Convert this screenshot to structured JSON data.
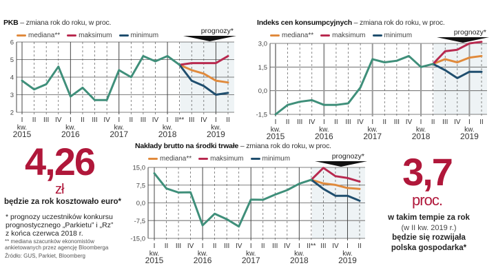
{
  "colors": {
    "actual": "#3f8f7a",
    "median": "#e08a3c",
    "max": "#b8294f",
    "min": "#1f4e6e",
    "accent_red": "#b0173a",
    "forecast_shade": "#eef3f5",
    "forecast_arrow": "#111111"
  },
  "forecast_label": "prognozy*",
  "legend": {
    "median": "mediana**",
    "max": "maksimum",
    "min": "minimum"
  },
  "quarter_labels": [
    "I",
    "II",
    "III",
    "IV",
    "I",
    "II",
    "III",
    "IV",
    "I",
    "II",
    "III",
    "IV",
    "I",
    "II",
    "III",
    "IV",
    "I",
    "II"
  ],
  "year_labels": [
    {
      "kw": "kw.",
      "year": "2015"
    },
    {
      "kw": "kw.",
      "year": "2016"
    },
    {
      "kw": "kw.",
      "year": "2017"
    },
    {
      "kw": "kw.",
      "year": "2018"
    },
    {
      "kw": "kw.",
      "year": "2019"
    }
  ],
  "chart_data": [
    {
      "type": "line",
      "id": "pkb",
      "title_bold": "PKB",
      "title_rest": " – zmiana rok do roku, w proc.",
      "xlabel": "",
      "ylabel": "",
      "ylim": [
        2,
        6
      ],
      "yticks": [
        2,
        3,
        4,
        5,
        6
      ],
      "ytick_labels": [
        "2",
        "3",
        "4",
        "5",
        "6"
      ],
      "x": [
        "2015 I",
        "2015 II",
        "2015 III",
        "2015 IV",
        "2016 I",
        "2016 II",
        "2016 III",
        "2016 IV",
        "2017 I",
        "2017 II",
        "2017 III",
        "2017 IV",
        "2018 I",
        "2018 II**",
        "2018 III",
        "2018 IV",
        "2019 I",
        "2019 II"
      ],
      "x_tick_labels": [
        "I",
        "II",
        "III",
        "IV",
        "I",
        "II",
        "III",
        "IV",
        "I",
        "II",
        "III",
        "IV",
        "I",
        "II**",
        "III",
        "IV",
        "I",
        "II"
      ],
      "forecast_start_index": 13,
      "series": [
        {
          "name": "actual",
          "values": [
            3.8,
            3.3,
            3.6,
            4.6,
            2.9,
            3.4,
            2.7,
            2.7,
            4.4,
            4.0,
            5.2,
            4.9,
            5.2,
            4.7,
            null,
            null,
            null,
            null
          ]
        },
        {
          "name": "mediana**",
          "values": [
            null,
            null,
            null,
            null,
            null,
            null,
            null,
            null,
            null,
            null,
            null,
            null,
            null,
            4.7,
            4.4,
            4.2,
            3.8,
            3.7
          ]
        },
        {
          "name": "maksimum",
          "values": [
            null,
            null,
            null,
            null,
            null,
            null,
            null,
            null,
            null,
            null,
            null,
            null,
            null,
            4.7,
            4.8,
            4.8,
            4.8,
            5.2
          ]
        },
        {
          "name": "minimum",
          "values": [
            null,
            null,
            null,
            null,
            null,
            null,
            null,
            null,
            null,
            null,
            null,
            null,
            null,
            4.7,
            3.8,
            3.5,
            3.0,
            3.1
          ]
        }
      ],
      "grid": true,
      "legend_position": "top-left"
    },
    {
      "type": "line",
      "id": "cpi",
      "title_bold": "Indeks cen konsumpcyjnych",
      "title_rest": " – zmiana rok do roku, w proc.",
      "xlabel": "",
      "ylabel": "",
      "ylim": [
        -1.5,
        3.0
      ],
      "yticks": [
        -1.5,
        0,
        1.5,
        3.0
      ],
      "ytick_labels": [
        "-1,5",
        "0,0",
        "1,5",
        "3,0"
      ],
      "x": [
        "2015 I",
        "2015 II",
        "2015 III",
        "2015 IV",
        "2016 I",
        "2016 II",
        "2016 III",
        "2016 IV",
        "2017 I",
        "2017 II",
        "2017 III",
        "2017 IV",
        "2018 I",
        "2018 II",
        "2018 III",
        "2018 IV",
        "2019 I",
        "2019 II"
      ],
      "x_tick_labels": [
        "I",
        "II",
        "III",
        "IV",
        "I",
        "II",
        "III",
        "IV",
        "I",
        "II",
        "III",
        "IV",
        "I",
        "II",
        "III",
        "IV",
        "I",
        "II"
      ],
      "forecast_start_index": 13,
      "series": [
        {
          "name": "actual",
          "values": [
            -1.5,
            -0.9,
            -0.7,
            -0.6,
            -0.9,
            -0.9,
            -0.8,
            0.2,
            2.0,
            1.8,
            1.9,
            2.2,
            1.5,
            1.7,
            null,
            null,
            null,
            null
          ]
        },
        {
          "name": "mediana**",
          "values": [
            null,
            null,
            null,
            null,
            null,
            null,
            null,
            null,
            null,
            null,
            null,
            null,
            null,
            1.7,
            2.0,
            1.8,
            2.1,
            2.2
          ]
        },
        {
          "name": "maksimum",
          "values": [
            null,
            null,
            null,
            null,
            null,
            null,
            null,
            null,
            null,
            null,
            null,
            null,
            null,
            1.7,
            2.5,
            2.6,
            3.0,
            3.1
          ]
        },
        {
          "name": "minimum",
          "values": [
            null,
            null,
            null,
            null,
            null,
            null,
            null,
            null,
            null,
            null,
            null,
            null,
            null,
            1.7,
            1.3,
            0.8,
            1.2,
            1.2
          ]
        }
      ],
      "grid": true,
      "legend_position": "top-left"
    },
    {
      "type": "line",
      "id": "investment",
      "title_bold": "Nakłady brutto na środki trwałe",
      "title_rest": " – zmiana rok do roku, w proc.",
      "xlabel": "",
      "ylabel": "",
      "ylim": [
        -15,
        15
      ],
      "yticks": [
        -15,
        -7.5,
        0,
        7.5,
        15
      ],
      "ytick_labels": [
        "-15,0",
        "-7,5",
        "0,0",
        "7,5",
        "15,0"
      ],
      "x": [
        "2015 I",
        "2015 II",
        "2015 III",
        "2015 IV",
        "2016 I",
        "2016 II",
        "2016 III",
        "2016 IV",
        "2017 I",
        "2017 II",
        "2017 III",
        "2017 IV",
        "2018 I",
        "2018 II**",
        "2018 III",
        "2018 IV",
        "2019 I",
        "2019 II"
      ],
      "x_tick_labels": [
        "I",
        "II",
        "III",
        "IV",
        "I",
        "II",
        "III",
        "IV",
        "I",
        "II",
        "III",
        "IV",
        "I",
        "II**",
        "III",
        "IV",
        "I",
        "II"
      ],
      "forecast_start_index": 13,
      "series": [
        {
          "name": "actual",
          "values": [
            12.5,
            6.1,
            4.4,
            4.5,
            -9.5,
            -4.6,
            -6.9,
            -10.0,
            1.4,
            1.3,
            3.5,
            5.4,
            8.1,
            9.8,
            null,
            null,
            null,
            null
          ]
        },
        {
          "name": "mediana**",
          "values": [
            null,
            null,
            null,
            null,
            null,
            null,
            null,
            null,
            null,
            null,
            null,
            null,
            null,
            9.8,
            8.2,
            7.6,
            6.3,
            5.9
          ]
        },
        {
          "name": "maksimum",
          "values": [
            null,
            null,
            null,
            null,
            null,
            null,
            null,
            null,
            null,
            null,
            null,
            null,
            null,
            9.8,
            14.8,
            11.3,
            10.5,
            9.0
          ]
        },
        {
          "name": "minimum",
          "values": [
            null,
            null,
            null,
            null,
            null,
            null,
            null,
            null,
            null,
            null,
            null,
            null,
            null,
            9.8,
            5.9,
            3.0,
            3.0,
            0.9
          ]
        }
      ],
      "grid": true,
      "legend_position": "top-left"
    }
  ],
  "euro_box": {
    "value": "4,26",
    "unit": "zł",
    "caption": "będzie za rok kosztowało euro*"
  },
  "gdp_box": {
    "value": "3,7",
    "unit": "proc.",
    "line1": "w takim tempie za rok",
    "line2": "(w II kw. 2019 r.)",
    "line3": "będzie się rozwijała",
    "line4": "polska gospodarka*"
  },
  "footnotes": {
    "star1_line1": "* prognozy uczestników konkursu",
    "star1_line2": "prognostycznego „Parkietu” i „Rz”",
    "star1_line3": "z końca czerwca 2018 r.",
    "star2_line1": "** mediana szacunków ekonomistów",
    "star2_line2": "ankietowanych przez agencję Bloomberga",
    "source": "Źródło: GUS, Parkiet, Bloomberg"
  }
}
